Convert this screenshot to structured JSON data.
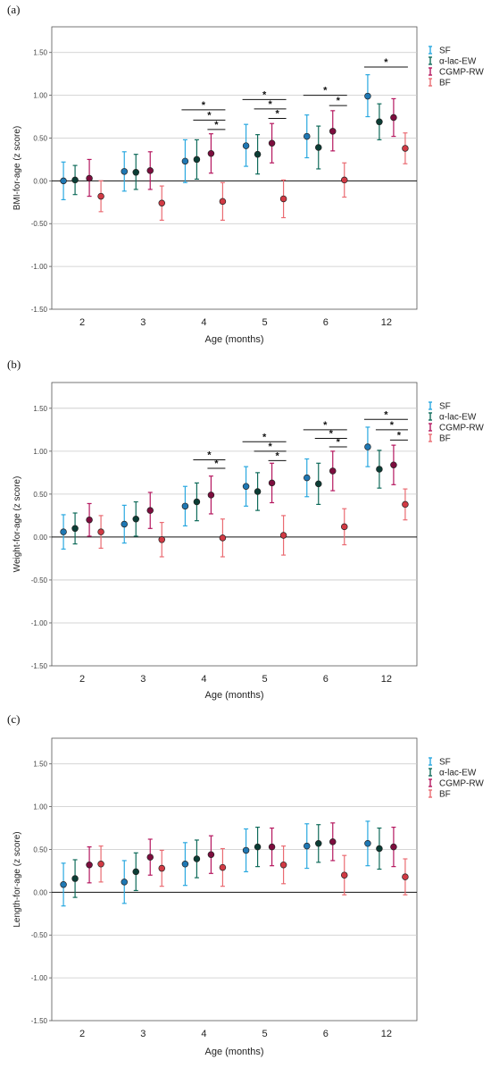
{
  "legend_labels": [
    "SF",
    "α-lac-EW",
    "CGMP-RW",
    "BF"
  ],
  "colors": {
    "SF": "#29a8e0",
    "α-lac-EW": "#0f6b5a",
    "CGMP-RW": "#b5175f",
    "BF": "#ea6b72",
    "SF_fill": "#1f78b4",
    "α-lac-EW_fill": "#0b3d35",
    "CGMP-RW_fill": "#7d0d3e",
    "BF_fill": "#d23a44"
  },
  "chart_data": [
    {
      "panel_label": "(a)",
      "type": "scatter",
      "xlabel": "Age (months)",
      "ylabel": "BMI-for-age (z score)",
      "ylim": [
        -1.5,
        1.8
      ],
      "yticks": [
        "1.50",
        "1.00",
        "0.50",
        "0.00",
        "-0.50",
        "-1.00",
        "-1.50"
      ],
      "ytick_values": [
        1.5,
        1.0,
        0.5,
        0.0,
        -0.5,
        -1.0,
        -1.5
      ],
      "categories": [
        "2",
        "3",
        "4",
        "5",
        "6",
        "12"
      ],
      "grid": true,
      "legend_position": "top-right",
      "series": [
        {
          "name": "SF",
          "values": [
            0.0,
            0.11,
            0.23,
            0.41,
            0.52,
            0.99
          ],
          "lower": [
            -0.22,
            -0.12,
            -0.02,
            0.17,
            0.27,
            0.75
          ],
          "upper": [
            0.22,
            0.34,
            0.48,
            0.66,
            0.77,
            1.24
          ]
        },
        {
          "name": "α-lac-EW",
          "values": [
            0.01,
            0.1,
            0.25,
            0.31,
            0.39,
            0.69
          ],
          "lower": [
            -0.16,
            -0.1,
            0.02,
            0.08,
            0.14,
            0.48
          ],
          "upper": [
            0.18,
            0.31,
            0.48,
            0.54,
            0.64,
            0.9
          ]
        },
        {
          "name": "CGMP-RW",
          "values": [
            0.03,
            0.12,
            0.32,
            0.44,
            0.58,
            0.74
          ],
          "lower": [
            -0.18,
            -0.1,
            0.09,
            0.21,
            0.35,
            0.52
          ],
          "upper": [
            0.25,
            0.34,
            0.55,
            0.67,
            0.82,
            0.96
          ]
        },
        {
          "name": "BF",
          "values": [
            -0.18,
            -0.26,
            -0.24,
            -0.21,
            0.01,
            0.38
          ],
          "lower": [
            -0.36,
            -0.46,
            -0.46,
            -0.43,
            -0.19,
            0.2
          ],
          "upper": [
            0.0,
            -0.06,
            -0.02,
            0.01,
            0.21,
            0.56
          ]
        }
      ],
      "significance": [
        {
          "category": "4",
          "from": "SF",
          "to": "BF",
          "y": 0.83
        },
        {
          "category": "4",
          "from": "α-lac-EW",
          "to": "BF",
          "y": 0.71
        },
        {
          "category": "4",
          "from": "CGMP-RW",
          "to": "BF",
          "y": 0.6
        },
        {
          "category": "5",
          "from": "SF",
          "to": "BF",
          "y": 0.95
        },
        {
          "category": "5",
          "from": "α-lac-EW",
          "to": "BF",
          "y": 0.84
        },
        {
          "category": "5",
          "from": "CGMP-RW",
          "to": "BF",
          "y": 0.73
        },
        {
          "category": "6",
          "from": "SF",
          "to": "BF",
          "y": 1.0
        },
        {
          "category": "6",
          "from": "CGMP-RW",
          "to": "BF",
          "y": 0.88
        },
        {
          "category": "12",
          "from": "SF",
          "to": "BF",
          "y": 1.33
        }
      ]
    },
    {
      "panel_label": "(b)",
      "type": "scatter",
      "xlabel": "Age (months)",
      "ylabel": "Weight-for-age (z score)",
      "ylim": [
        -1.5,
        1.8
      ],
      "yticks": [
        "1.50",
        "1.00",
        "0.50",
        "0.00",
        "-0.50",
        "-1.00",
        "-1.50"
      ],
      "ytick_values": [
        1.5,
        1.0,
        0.5,
        0.0,
        -0.5,
        -1.0,
        -1.5
      ],
      "categories": [
        "2",
        "3",
        "4",
        "5",
        "6",
        "12"
      ],
      "grid": true,
      "legend_position": "top-right",
      "series": [
        {
          "name": "SF",
          "values": [
            0.06,
            0.15,
            0.36,
            0.59,
            0.69,
            1.05
          ],
          "lower": [
            -0.14,
            -0.07,
            0.13,
            0.36,
            0.47,
            0.82
          ],
          "upper": [
            0.26,
            0.37,
            0.59,
            0.82,
            0.91,
            1.28
          ]
        },
        {
          "name": "α-lac-EW",
          "values": [
            0.1,
            0.21,
            0.41,
            0.53,
            0.62,
            0.79
          ],
          "lower": [
            -0.08,
            0.01,
            0.19,
            0.31,
            0.38,
            0.57
          ],
          "upper": [
            0.28,
            0.41,
            0.63,
            0.75,
            0.86,
            1.01
          ]
        },
        {
          "name": "CGMP-RW",
          "values": [
            0.2,
            0.31,
            0.49,
            0.63,
            0.77,
            0.84
          ],
          "lower": [
            0.01,
            0.1,
            0.27,
            0.4,
            0.54,
            0.61
          ],
          "upper": [
            0.39,
            0.52,
            0.71,
            0.86,
            1.0,
            1.07
          ]
        },
        {
          "name": "BF",
          "values": [
            0.06,
            -0.03,
            -0.01,
            0.02,
            0.12,
            0.38
          ],
          "lower": [
            -0.13,
            -0.23,
            -0.23,
            -0.21,
            -0.09,
            0.2
          ],
          "upper": [
            0.25,
            0.17,
            0.21,
            0.25,
            0.33,
            0.56
          ]
        }
      ],
      "significance": [
        {
          "category": "4",
          "from": "α-lac-EW",
          "to": "BF",
          "y": 0.9
        },
        {
          "category": "4",
          "from": "CGMP-RW",
          "to": "BF",
          "y": 0.8
        },
        {
          "category": "5",
          "from": "SF",
          "to": "BF",
          "y": 1.11
        },
        {
          "category": "5",
          "from": "α-lac-EW",
          "to": "BF",
          "y": 1.0
        },
        {
          "category": "5",
          "from": "CGMP-RW",
          "to": "BF",
          "y": 0.89
        },
        {
          "category": "6",
          "from": "SF",
          "to": "BF",
          "y": 1.25
        },
        {
          "category": "6",
          "from": "α-lac-EW",
          "to": "BF",
          "y": 1.15
        },
        {
          "category": "6",
          "from": "CGMP-RW",
          "to": "BF",
          "y": 1.05
        },
        {
          "category": "12",
          "from": "SF",
          "to": "BF",
          "y": 1.37
        },
        {
          "category": "12",
          "from": "α-lac-EW",
          "to": "BF",
          "y": 1.25
        },
        {
          "category": "12",
          "from": "CGMP-RW",
          "to": "BF",
          "y": 1.13
        }
      ]
    },
    {
      "panel_label": "(c)",
      "type": "scatter",
      "xlabel": "Age (months)",
      "ylabel": "Length-for-age (z score)",
      "ylim": [
        -1.5,
        1.8
      ],
      "yticks": [
        "1.50",
        "1.00",
        "0.50",
        "0.00",
        "-0.50",
        "-1.00",
        "-1.50"
      ],
      "ytick_values": [
        1.5,
        1.0,
        0.5,
        0.0,
        -0.5,
        -1.0,
        -1.5
      ],
      "categories": [
        "2",
        "3",
        "4",
        "5",
        "6",
        "12"
      ],
      "grid": true,
      "legend_position": "top-right",
      "series": [
        {
          "name": "SF",
          "values": [
            0.09,
            0.12,
            0.33,
            0.49,
            0.54,
            0.57
          ],
          "lower": [
            -0.16,
            -0.13,
            0.08,
            0.24,
            0.28,
            0.31
          ],
          "upper": [
            0.34,
            0.37,
            0.58,
            0.74,
            0.8,
            0.83
          ]
        },
        {
          "name": "α-lac-EW",
          "values": [
            0.16,
            0.24,
            0.39,
            0.53,
            0.57,
            0.51
          ],
          "lower": [
            -0.06,
            0.02,
            0.17,
            0.3,
            0.35,
            0.27
          ],
          "upper": [
            0.38,
            0.46,
            0.61,
            0.76,
            0.79,
            0.75
          ]
        },
        {
          "name": "CGMP-RW",
          "values": [
            0.32,
            0.41,
            0.44,
            0.53,
            0.59,
            0.53
          ],
          "lower": [
            0.11,
            0.2,
            0.22,
            0.31,
            0.37,
            0.3
          ],
          "upper": [
            0.53,
            0.62,
            0.66,
            0.75,
            0.81,
            0.76
          ]
        },
        {
          "name": "BF",
          "values": [
            0.33,
            0.28,
            0.29,
            0.32,
            0.2,
            0.18
          ],
          "lower": [
            0.12,
            0.07,
            0.07,
            0.1,
            -0.03,
            -0.03
          ],
          "upper": [
            0.54,
            0.49,
            0.51,
            0.54,
            0.43,
            0.39
          ]
        }
      ],
      "significance": []
    }
  ]
}
